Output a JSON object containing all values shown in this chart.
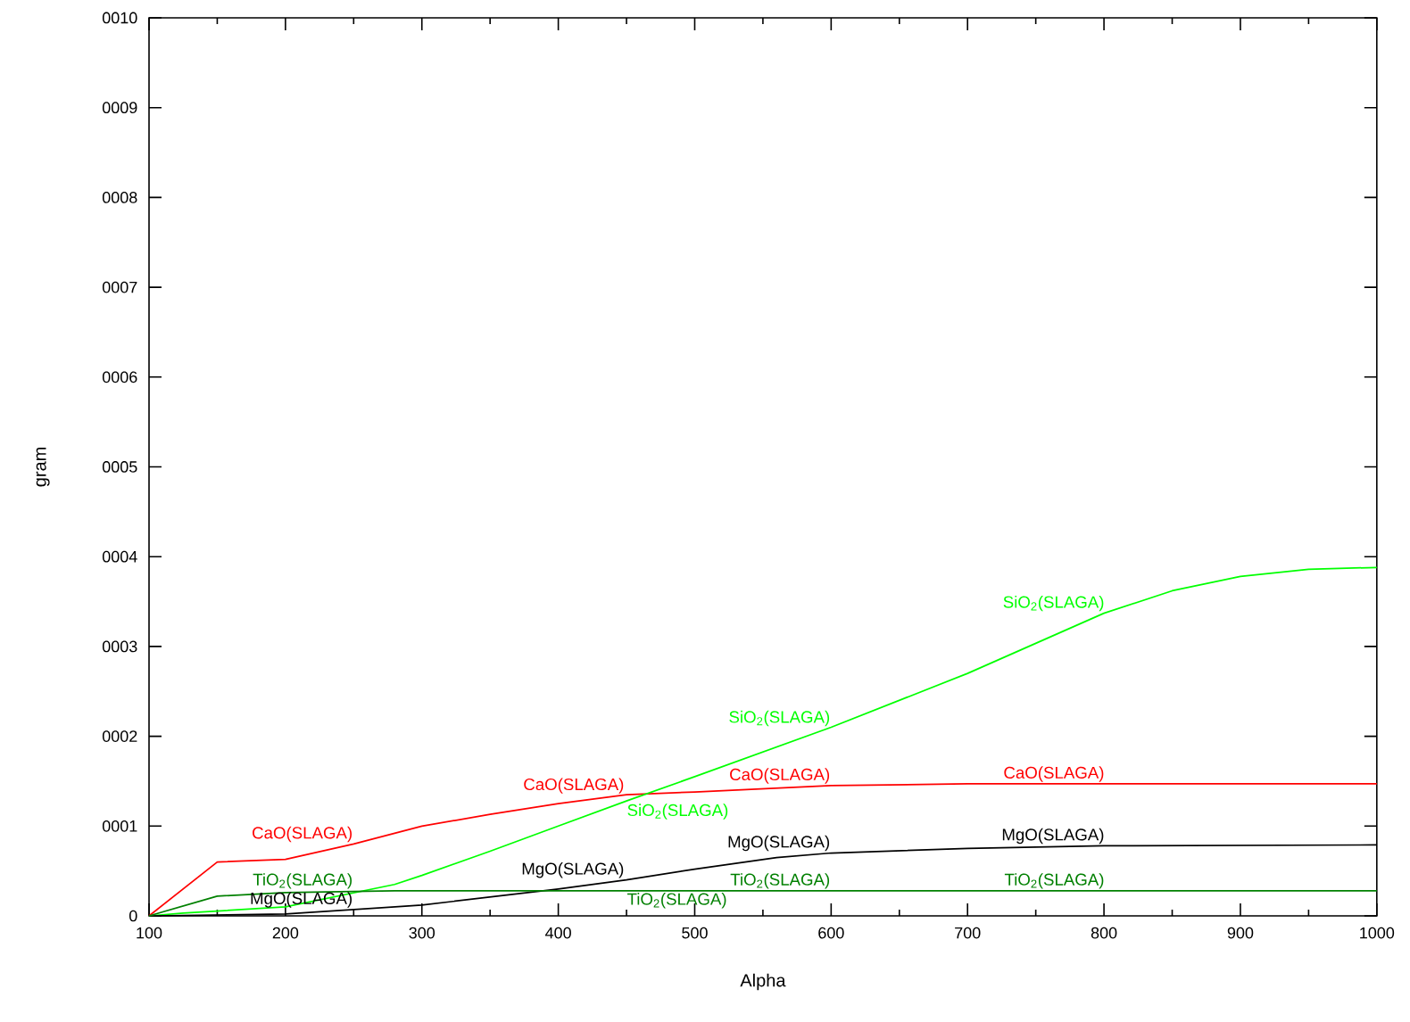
{
  "chart_data": {
    "type": "line",
    "xlabel": "Alpha",
    "ylabel": "gram",
    "xlim": [
      100,
      1000
    ],
    "xticks": [
      100,
      200,
      300,
      400,
      500,
      600,
      700,
      800,
      900,
      1000
    ],
    "ylim": [
      0,
      10
    ],
    "yticks": [
      0,
      {
        "value": 1,
        "label": "0001"
      },
      {
        "value": 2,
        "label": "0002"
      },
      {
        "value": 3,
        "label": "0003"
      },
      {
        "value": 4,
        "label": "0004"
      },
      {
        "value": 5,
        "label": "0005"
      },
      {
        "value": 6,
        "label": "0006"
      },
      {
        "value": 7,
        "label": "0007"
      },
      {
        "value": 8,
        "label": "0008"
      },
      {
        "value": 9,
        "label": "0009"
      },
      {
        "value": 10,
        "label": "0010"
      }
    ],
    "marker": "none",
    "line_style": "solid",
    "series": [
      {
        "color": "#ff0000",
        "x": [
          100,
          150,
          200,
          250,
          300,
          350,
          400,
          450,
          500,
          600,
          700,
          1000
        ],
        "values": [
          0,
          0.6,
          0.63,
          0.8,
          1.0,
          1.13,
          1.25,
          1.35,
          1.38,
          1.45,
          1.47,
          1.47
        ]
      },
      {
        "color": "#00ff00",
        "x": [
          100,
          125,
          200,
          280,
          300,
          350,
          400,
          450,
          500,
          600,
          700,
          800,
          850,
          900,
          950,
          1000
        ],
        "values": [
          0,
          0.03,
          0.1,
          0.35,
          0.45,
          0.72,
          1.0,
          1.28,
          1.55,
          2.1,
          2.7,
          3.37,
          3.62,
          3.78,
          3.86,
          3.88
        ]
      },
      {
        "color": "#000000",
        "x": [
          100,
          200,
          300,
          400,
          450,
          500,
          560,
          600,
          700,
          800,
          1000
        ],
        "values": [
          0,
          0.02,
          0.12,
          0.3,
          0.4,
          0.52,
          0.65,
          0.7,
          0.75,
          0.78,
          0.79
        ]
      },
      {
        "color": "#008000",
        "x": [
          100,
          150,
          200,
          280,
          1000
        ],
        "values": [
          0,
          0.22,
          0.26,
          0.28,
          0.28
        ]
      }
    ],
    "annotations": [
      {
        "text": "CaO(SLAGA)",
        "x": 249,
        "y": 0.8
      },
      {
        "text": "CaO(SLAGA)",
        "x": 448,
        "y": 1.34
      },
      {
        "text": "CaO(SLAGA)",
        "x": 599,
        "y": 1.45
      },
      {
        "text": "CaO(SLAGA)",
        "x": 800,
        "y": 1.47
      },
      {
        "text": "SiO$_{2}$(SLAGA)",
        "x": 448,
        "y": 1.27
      },
      {
        "text": "SiO$_{2}$(SLAGA)",
        "x": 599,
        "y": 2.09
      },
      {
        "text": "SiO$_{2}$(SLAGA)",
        "x": 800,
        "y": 3.37
      },
      {
        "text": "MgO(SLAGA)",
        "x": 249,
        "y": 0.07
      },
      {
        "text": "MgO(SLAGA)",
        "x": 448,
        "y": 0.4
      },
      {
        "text": "MgO(SLAGA)",
        "x": 599,
        "y": 0.7
      },
      {
        "text": "MgO(SLAGA)",
        "x": 800,
        "y": 0.78
      },
      {
        "text": "TiO$_{2}$(SLAGA)",
        "x": 249,
        "y": 0.28
      },
      {
        "text": "TiO$_{2}$(SLAGA)",
        "x": 448,
        "y": 0.28
      },
      {
        "text": "TiO$_{2}$(SLAGA)",
        "x": 599,
        "y": 0.28
      },
      {
        "text": "TiO$_{2}$(SLAGA)",
        "x": 800,
        "y": 0.28
      }
    ]
  }
}
